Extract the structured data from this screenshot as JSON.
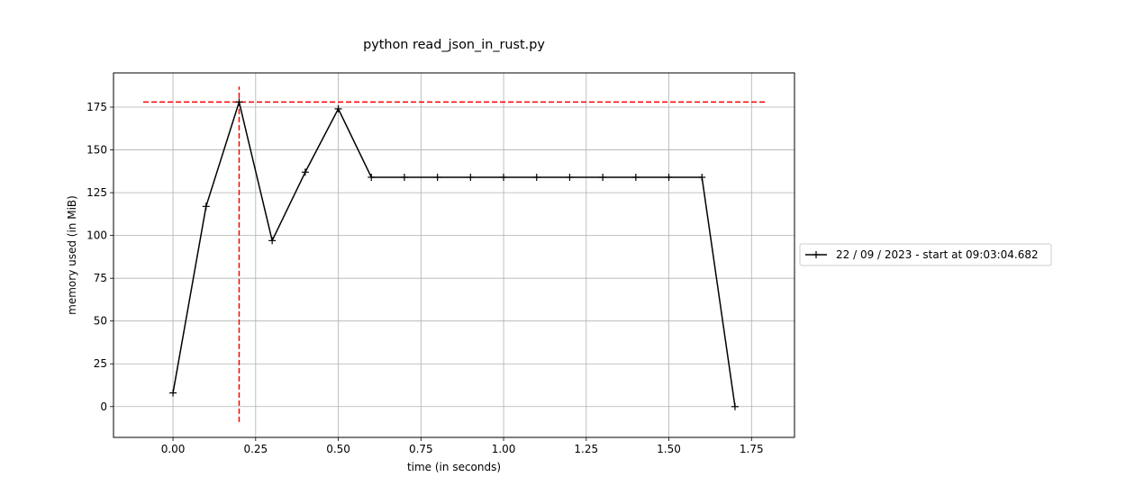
{
  "chart_data": {
    "type": "line",
    "title": "python read_json_in_rust.py",
    "xlabel": "time (in seconds)",
    "ylabel": "memory used (in MiB)",
    "xlim": [
      -0.18,
      1.88
    ],
    "ylim": [
      -18,
      195
    ],
    "xticks": [
      0.0,
      0.25,
      0.5,
      0.75,
      1.0,
      1.25,
      1.5,
      1.75
    ],
    "xtick_labels": [
      "0.00",
      "0.25",
      "0.50",
      "0.75",
      "1.00",
      "1.25",
      "1.50",
      "1.75"
    ],
    "yticks": [
      0,
      25,
      50,
      75,
      100,
      125,
      150,
      175
    ],
    "ytick_labels": [
      "0",
      "25",
      "50",
      "75",
      "100",
      "125",
      "150",
      "175"
    ],
    "grid": true,
    "legend_position": "outside-right",
    "series": [
      {
        "name": "22 / 09 / 2023 - start at 09:03:04.682",
        "color": "#000000",
        "marker": "+",
        "x": [
          0.0,
          0.1,
          0.2,
          0.3,
          0.4,
          0.5,
          0.6,
          0.7,
          0.8,
          0.9,
          1.0,
          1.1,
          1.2,
          1.3,
          1.4,
          1.5,
          1.6,
          1.7
        ],
        "y": [
          8,
          117,
          178,
          97,
          137,
          174,
          134,
          134,
          134,
          134,
          134,
          134,
          134,
          134,
          134,
          134,
          134,
          0
        ]
      }
    ],
    "reference_lines": [
      {
        "orientation": "horizontal",
        "y": 178,
        "x_from": -0.09,
        "x_to": 1.79,
        "color": "#ff0000",
        "style": "dashed"
      },
      {
        "orientation": "vertical",
        "x": 0.2,
        "y_from": -9,
        "y_to": 187,
        "color": "#ff0000",
        "style": "dashed"
      }
    ]
  }
}
